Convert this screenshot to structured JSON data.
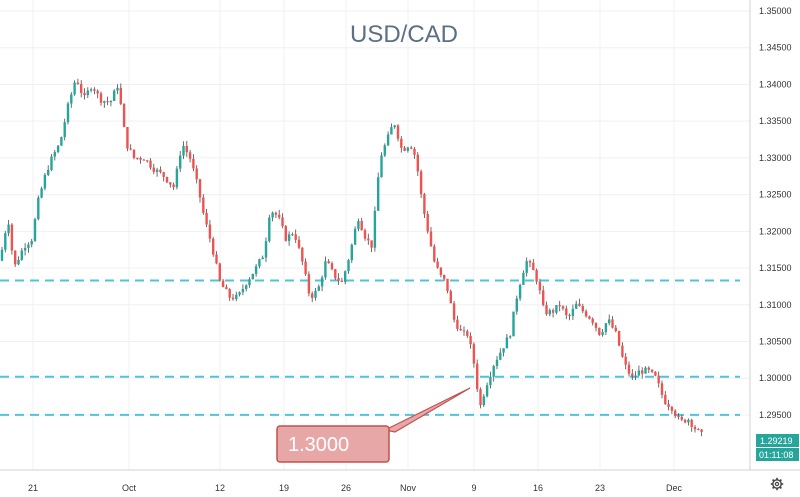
{
  "chart_data": {
    "type": "candlestick",
    "title": "USD/CAD",
    "ylim": [
      1.2875,
      1.3515
    ],
    "y_ticks": [
      "1.35000",
      "1.34500",
      "1.34000",
      "1.33500",
      "1.33000",
      "1.32500",
      "1.32000",
      "1.31500",
      "1.31000",
      "1.30500",
      "1.30000",
      "1.29500"
    ],
    "x_ticks": [
      "21",
      "Oct",
      "12",
      "19",
      "26",
      "Nov",
      "9",
      "16",
      "23",
      "Dec"
    ],
    "grid": true,
    "colors": {
      "up": "#26a69a",
      "down": "#ef5350",
      "level": "#4fc3d9",
      "callout_fill": "#e8a7a7",
      "callout_border": "#c0524f"
    },
    "horizontal_levels": [
      1.3133,
      1.3002,
      1.295
    ],
    "price_label": "1.29219",
    "countdown_label": "01:11:08",
    "annotation": "1.3000",
    "price_path": [
      [
        0,
        1.316
      ],
      [
        8,
        1.322
      ],
      [
        14,
        1.315
      ],
      [
        24,
        1.318
      ],
      [
        32,
        1.319
      ],
      [
        38,
        1.324
      ],
      [
        46,
        1.328
      ],
      [
        52,
        1.33
      ],
      [
        60,
        1.332
      ],
      [
        68,
        1.337
      ],
      [
        76,
        1.341
      ],
      [
        84,
        1.338
      ],
      [
        92,
        1.34
      ],
      [
        100,
        1.338
      ],
      [
        110,
        1.3375
      ],
      [
        118,
        1.34
      ],
      [
        126,
        1.332
      ],
      [
        134,
        1.33
      ],
      [
        144,
        1.33
      ],
      [
        154,
        1.3285
      ],
      [
        164,
        1.3275
      ],
      [
        174,
        1.326
      ],
      [
        182,
        1.332
      ],
      [
        190,
        1.33
      ],
      [
        198,
        1.326
      ],
      [
        204,
        1.322
      ],
      [
        212,
        1.318
      ],
      [
        220,
        1.313
      ],
      [
        230,
        1.311
      ],
      [
        238,
        1.311
      ],
      [
        246,
        1.313
      ],
      [
        256,
        1.315
      ],
      [
        264,
        1.317
      ],
      [
        270,
        1.323
      ],
      [
        278,
        1.322
      ],
      [
        286,
        1.319
      ],
      [
        294,
        1.32
      ],
      [
        302,
        1.316
      ],
      [
        310,
        1.311
      ],
      [
        318,
        1.312
      ],
      [
        326,
        1.316
      ],
      [
        334,
        1.314
      ],
      [
        342,
        1.313
      ],
      [
        350,
        1.317
      ],
      [
        358,
        1.322
      ],
      [
        366,
        1.319
      ],
      [
        372,
        1.318
      ],
      [
        380,
        1.33
      ],
      [
        386,
        1.332
      ],
      [
        394,
        1.335
      ],
      [
        402,
        1.331
      ],
      [
        410,
        1.332
      ],
      [
        416,
        1.33
      ],
      [
        422,
        1.324
      ],
      [
        428,
        1.32
      ],
      [
        434,
        1.316
      ],
      [
        440,
        1.314
      ],
      [
        446,
        1.313
      ],
      [
        454,
        1.308
      ],
      [
        462,
        1.306
      ],
      [
        468,
        1.306
      ],
      [
        474,
        1.302
      ],
      [
        480,
        1.296
      ],
      [
        486,
        1.299
      ],
      [
        494,
        1.302
      ],
      [
        502,
        1.304
      ],
      [
        510,
        1.306
      ],
      [
        518,
        1.312
      ],
      [
        526,
        1.316
      ],
      [
        532,
        1.315
      ],
      [
        538,
        1.313
      ],
      [
        544,
        1.309
      ],
      [
        552,
        1.309
      ],
      [
        560,
        1.31
      ],
      [
        568,
        1.308
      ],
      [
        576,
        1.31
      ],
      [
        584,
        1.309
      ],
      [
        592,
        1.308
      ],
      [
        600,
        1.306
      ],
      [
        608,
        1.308
      ],
      [
        616,
        1.306
      ],
      [
        624,
        1.302
      ],
      [
        632,
        1.3
      ],
      [
        640,
        1.301
      ],
      [
        648,
        1.301
      ],
      [
        656,
        1.3
      ],
      [
        664,
        1.297
      ],
      [
        672,
        1.296
      ],
      [
        680,
        1.294
      ],
      [
        688,
        1.2945
      ],
      [
        696,
        1.293
      ],
      [
        702,
        1.2922
      ]
    ]
  }
}
